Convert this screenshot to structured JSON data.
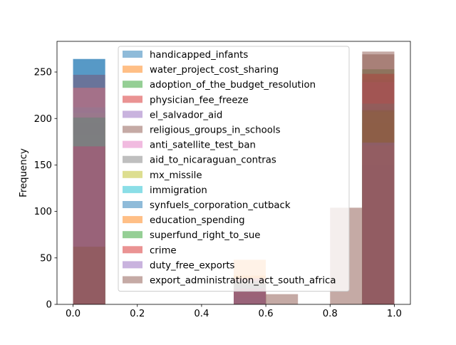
{
  "chart_data": {
    "type": "histogram",
    "title": "",
    "xlabel": "",
    "ylabel": "Frequency",
    "xlim": [
      -0.05,
      1.05
    ],
    "ylim": [
      0,
      283
    ],
    "bins": [
      0.0,
      0.1,
      0.2,
      0.3,
      0.4,
      0.5,
      0.6,
      0.7,
      0.8,
      0.9,
      1.0
    ],
    "x_ticks": [
      0.0,
      0.2,
      0.4,
      0.6,
      0.8,
      1.0
    ],
    "x_tick_labels": [
      "0.0",
      "0.2",
      "0.4",
      "0.6",
      "0.8",
      "1.0"
    ],
    "y_ticks": [
      0,
      50,
      100,
      150,
      200,
      250
    ],
    "y_tick_labels": [
      "0",
      "50",
      "100",
      "150",
      "200",
      "250"
    ],
    "legend_position": "upper-center",
    "bar_alpha": 0.5,
    "series": [
      {
        "name": "handicapped_infants",
        "color": "#1f77b4",
        "counts": [
          264,
          0,
          0,
          0,
          0,
          0,
          0,
          0,
          0,
          176
        ]
      },
      {
        "name": "water_project_cost_sharing",
        "color": "#ff7f0e",
        "counts": [
          196,
          0,
          0,
          0,
          0,
          48,
          0,
          0,
          0,
          195
        ]
      },
      {
        "name": "adoption_of_the_budget_resolution",
        "color": "#2ca02c",
        "counts": [
          171,
          0,
          0,
          0,
          0,
          11,
          0,
          0,
          0,
          253
        ]
      },
      {
        "name": "physician_fee_freeze",
        "color": "#d62728",
        "counts": [
          247,
          0,
          0,
          0,
          0,
          11,
          0,
          0,
          0,
          177
        ]
      },
      {
        "name": "el_salvador_aid",
        "color": "#9467bd",
        "counts": [
          208,
          0,
          0,
          0,
          0,
          15,
          0,
          0,
          0,
          212
        ]
      },
      {
        "name": "religious_groups_in_schools",
        "color": "#8c564b",
        "counts": [
          152,
          0,
          0,
          0,
          0,
          11,
          0,
          0,
          0,
          272
        ]
      },
      {
        "name": "anti_satellite_test_ban",
        "color": "#e377c2",
        "counts": [
          182,
          0,
          0,
          0,
          0,
          14,
          0,
          0,
          0,
          239
        ]
      },
      {
        "name": "aid_to_nicaraguan_contras",
        "color": "#7f7f7f",
        "counts": [
          178,
          0,
          0,
          0,
          0,
          15,
          0,
          0,
          0,
          242
        ]
      },
      {
        "name": "mx_missile",
        "color": "#bcbd22",
        "counts": [
          206,
          0,
          0,
          0,
          0,
          22,
          0,
          0,
          0,
          207
        ]
      },
      {
        "name": "immigration",
        "color": "#17becf",
        "counts": [
          212,
          0,
          0,
          0,
          0,
          7,
          0,
          0,
          0,
          216
        ]
      },
      {
        "name": "synfuels_corporation_cutback",
        "color": "#1f77b4",
        "counts": [
          264,
          0,
          0,
          0,
          0,
          21,
          0,
          0,
          0,
          150
        ]
      },
      {
        "name": "education_spending",
        "color": "#ff7f0e",
        "counts": [
          233,
          0,
          0,
          0,
          0,
          31,
          0,
          0,
          0,
          171
        ]
      },
      {
        "name": "superfund_right_to_sue",
        "color": "#2ca02c",
        "counts": [
          201,
          0,
          0,
          0,
          0,
          25,
          0,
          0,
          0,
          209
        ]
      },
      {
        "name": "crime",
        "color": "#d62728",
        "counts": [
          170,
          0,
          0,
          0,
          0,
          17,
          0,
          0,
          0,
          248
        ]
      },
      {
        "name": "duty_free_exports",
        "color": "#9467bd",
        "counts": [
          233,
          0,
          0,
          0,
          0,
          28,
          0,
          0,
          0,
          174
        ]
      },
      {
        "name": "export_administration_act_south_africa",
        "color": "#8c564b",
        "counts": [
          62,
          0,
          0,
          0,
          0,
          0,
          11,
          0,
          104,
          269
        ]
      }
    ]
  }
}
